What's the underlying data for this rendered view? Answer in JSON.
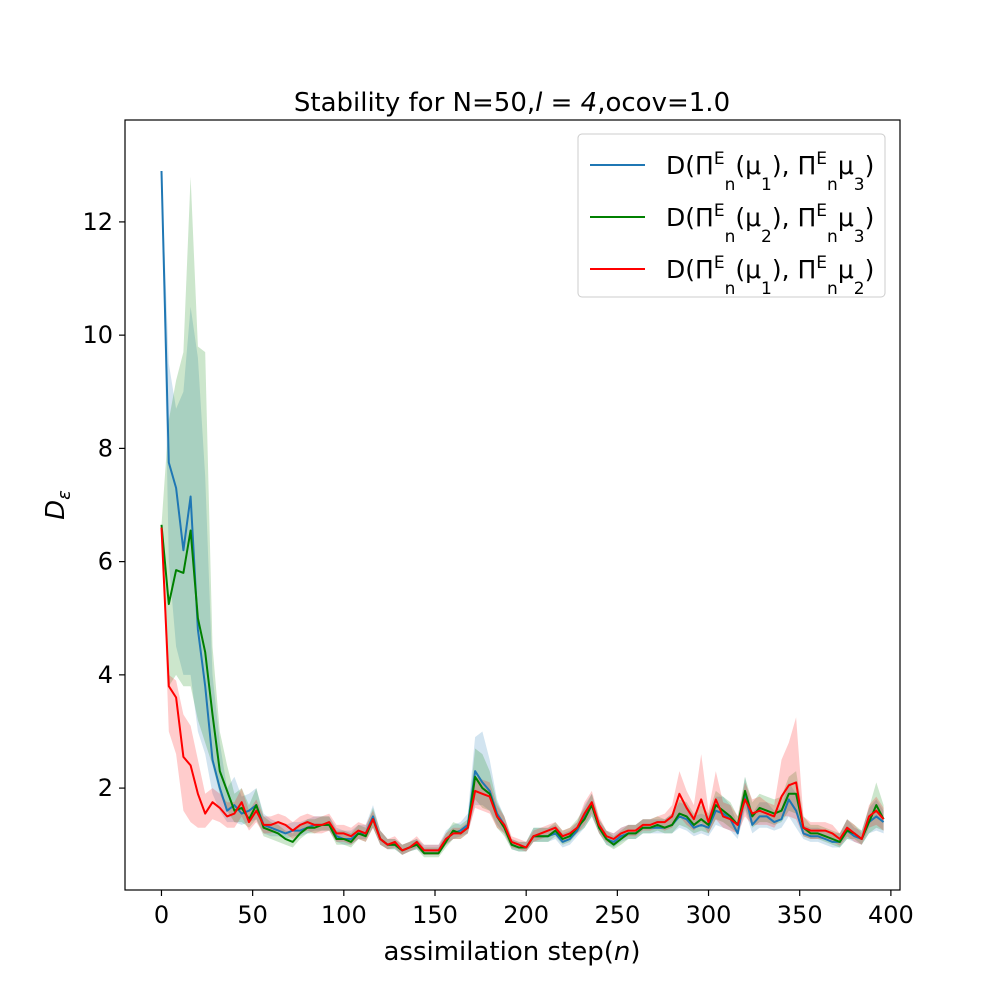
{
  "chart_data": {
    "type": "line",
    "title": "Stability for N=50,",
    "title_math": "l = 4",
    "title_suffix": ",ocov=1.0",
    "xlabel": "assimilation step(",
    "xlabel_math": "n",
    "xlabel_suffix": ")",
    "ylabel": "D",
    "ylabel_sub": "ε",
    "xlim": [
      -20,
      405
    ],
    "ylim": [
      0.2,
      13.8
    ],
    "xticks": [
      0,
      50,
      100,
      150,
      200,
      250,
      300,
      350,
      400
    ],
    "yticks": [
      2,
      4,
      6,
      8,
      10,
      12
    ],
    "x": [
      0,
      4,
      8,
      12,
      16,
      20,
      24,
      28,
      32,
      36,
      40,
      44,
      48,
      52,
      56,
      60,
      64,
      68,
      72,
      76,
      80,
      84,
      88,
      92,
      96,
      100,
      104,
      108,
      112,
      116,
      120,
      124,
      128,
      132,
      136,
      140,
      144,
      148,
      152,
      156,
      160,
      164,
      168,
      172,
      176,
      180,
      184,
      188,
      192,
      196,
      200,
      204,
      208,
      212,
      216,
      220,
      224,
      228,
      232,
      236,
      240,
      244,
      248,
      252,
      256,
      260,
      264,
      268,
      272,
      276,
      280,
      284,
      288,
      292,
      296,
      300,
      304,
      308,
      312,
      316,
      320,
      324,
      328,
      332,
      336,
      340,
      344,
      348,
      352,
      356,
      360,
      364,
      368,
      372,
      376,
      380,
      384,
      388,
      392,
      396
    ],
    "legend_position": "upper right",
    "series": [
      {
        "name": "D(Π^E_n(μ_1), Π^E_nμ_3)",
        "color": "#1f77b4",
        "values": [
          12.9,
          7.75,
          7.3,
          6.2,
          7.15,
          4.8,
          3.8,
          2.5,
          2.0,
          1.6,
          1.7,
          1.55,
          1.6,
          1.7,
          1.35,
          1.3,
          1.25,
          1.2,
          1.25,
          1.25,
          1.3,
          1.35,
          1.35,
          1.35,
          1.15,
          1.1,
          1.1,
          1.2,
          1.2,
          1.5,
          1.1,
          1.0,
          1.0,
          0.9,
          0.95,
          1.0,
          0.9,
          0.9,
          0.9,
          1.1,
          1.2,
          1.25,
          1.35,
          2.3,
          2.1,
          1.95,
          1.55,
          1.35,
          1.0,
          0.95,
          0.95,
          1.15,
          1.15,
          1.15,
          1.2,
          1.05,
          1.1,
          1.25,
          1.5,
          1.7,
          1.3,
          1.1,
          1.05,
          1.15,
          1.2,
          1.2,
          1.3,
          1.3,
          1.3,
          1.3,
          1.35,
          1.5,
          1.45,
          1.3,
          1.35,
          1.3,
          1.6,
          1.55,
          1.45,
          1.2,
          1.9,
          1.35,
          1.5,
          1.5,
          1.4,
          1.45,
          1.8,
          1.6,
          1.2,
          1.15,
          1.15,
          1.1,
          1.05,
          1.05,
          1.25,
          1.15,
          1.1,
          1.4,
          1.5,
          1.4
        ],
        "band_low": [
          12.9,
          6.0,
          4.5,
          4.0,
          4.0,
          3.0,
          2.6,
          1.9,
          1.6,
          1.4,
          1.4,
          1.35,
          1.4,
          1.45,
          1.2,
          1.15,
          1.15,
          1.1,
          1.15,
          1.15,
          1.2,
          1.25,
          1.25,
          1.25,
          1.05,
          1.0,
          1.0,
          1.1,
          1.1,
          1.3,
          1.0,
          0.92,
          0.92,
          0.82,
          0.88,
          0.92,
          0.82,
          0.82,
          0.82,
          1.0,
          1.1,
          1.15,
          1.2,
          1.7,
          1.7,
          1.6,
          1.35,
          1.2,
          0.92,
          0.88,
          0.88,
          1.05,
          1.05,
          1.05,
          1.1,
          0.95,
          1.0,
          1.15,
          1.3,
          1.5,
          1.2,
          1.0,
          0.95,
          1.05,
          1.1,
          1.1,
          1.2,
          1.2,
          1.2,
          1.2,
          1.2,
          1.3,
          1.25,
          1.15,
          1.2,
          1.15,
          1.35,
          1.3,
          1.25,
          1.1,
          1.6,
          1.2,
          1.3,
          1.3,
          1.25,
          1.3,
          1.5,
          1.3,
          1.1,
          1.05,
          1.05,
          1.0,
          0.95,
          0.95,
          1.1,
          1.05,
          1.0,
          1.2,
          1.25,
          1.2
        ],
        "band_high": [
          12.9,
          9.5,
          8.7,
          9.0,
          10.5,
          9.6,
          7.5,
          4.0,
          2.8,
          2.0,
          2.2,
          1.85,
          1.9,
          2.0,
          1.55,
          1.45,
          1.4,
          1.35,
          1.4,
          1.4,
          1.45,
          1.5,
          1.5,
          1.5,
          1.3,
          1.25,
          1.25,
          1.35,
          1.35,
          1.7,
          1.25,
          1.1,
          1.1,
          1.0,
          1.05,
          1.1,
          1.0,
          1.0,
          1.0,
          1.25,
          1.35,
          1.4,
          1.55,
          2.9,
          3.0,
          2.5,
          1.8,
          1.5,
          1.1,
          1.05,
          1.05,
          1.3,
          1.3,
          1.3,
          1.35,
          1.2,
          1.25,
          1.4,
          1.7,
          1.9,
          1.45,
          1.25,
          1.2,
          1.3,
          1.35,
          1.35,
          1.45,
          1.45,
          1.45,
          1.45,
          1.55,
          1.75,
          1.7,
          1.5,
          1.55,
          1.5,
          1.85,
          1.85,
          1.7,
          1.35,
          2.2,
          1.55,
          1.75,
          1.75,
          1.6,
          1.65,
          2.1,
          1.9,
          1.35,
          1.3,
          1.3,
          1.25,
          1.2,
          1.2,
          1.45,
          1.3,
          1.25,
          1.65,
          1.8,
          1.6
        ]
      },
      {
        "name": "D(Π^E_n(μ_2), Π^E_nμ_3)",
        "color": "#008000",
        "values": [
          6.65,
          5.25,
          5.85,
          5.8,
          6.55,
          5.0,
          4.4,
          3.3,
          2.3,
          1.95,
          1.6,
          1.65,
          1.45,
          1.7,
          1.3,
          1.25,
          1.2,
          1.1,
          1.05,
          1.2,
          1.3,
          1.3,
          1.35,
          1.35,
          1.1,
          1.1,
          1.05,
          1.2,
          1.15,
          1.45,
          1.1,
          1.0,
          1.0,
          0.9,
          0.95,
          1.0,
          0.85,
          0.85,
          0.85,
          1.05,
          1.25,
          1.2,
          1.3,
          2.2,
          2.0,
          1.9,
          1.5,
          1.3,
          1.0,
          0.95,
          0.95,
          1.15,
          1.15,
          1.15,
          1.25,
          1.1,
          1.15,
          1.3,
          1.45,
          1.7,
          1.3,
          1.1,
          1.0,
          1.1,
          1.2,
          1.2,
          1.3,
          1.3,
          1.35,
          1.3,
          1.35,
          1.55,
          1.5,
          1.35,
          1.45,
          1.35,
          1.7,
          1.6,
          1.5,
          1.35,
          1.95,
          1.5,
          1.65,
          1.6,
          1.55,
          1.6,
          1.9,
          1.9,
          1.3,
          1.2,
          1.2,
          1.15,
          1.1,
          1.05,
          1.25,
          1.2,
          1.1,
          1.4,
          1.7,
          1.45
        ],
        "band_low": [
          6.65,
          3.8,
          4.0,
          3.8,
          3.8,
          3.2,
          2.8,
          2.4,
          1.9,
          1.6,
          1.4,
          1.4,
          1.3,
          1.45,
          1.15,
          1.1,
          1.05,
          1.0,
          0.95,
          1.1,
          1.2,
          1.2,
          1.25,
          1.25,
          1.0,
          1.0,
          0.95,
          1.1,
          1.05,
          1.3,
          1.0,
          0.92,
          0.92,
          0.82,
          0.88,
          0.92,
          0.78,
          0.78,
          0.78,
          0.95,
          1.1,
          1.1,
          1.2,
          1.8,
          1.65,
          1.6,
          1.3,
          1.15,
          0.92,
          0.88,
          0.88,
          1.05,
          1.05,
          1.05,
          1.15,
          1.0,
          1.05,
          1.2,
          1.3,
          1.5,
          1.2,
          1.0,
          0.92,
          1.0,
          1.1,
          1.1,
          1.2,
          1.2,
          1.25,
          1.2,
          1.2,
          1.35,
          1.3,
          1.2,
          1.25,
          1.2,
          1.45,
          1.4,
          1.3,
          1.2,
          1.65,
          1.3,
          1.4,
          1.4,
          1.35,
          1.4,
          1.6,
          1.55,
          1.15,
          1.1,
          1.1,
          1.05,
          1.0,
          0.95,
          1.1,
          1.1,
          1.0,
          1.2,
          1.3,
          1.25
        ],
        "band_high": [
          6.65,
          8.5,
          9.2,
          9.7,
          12.8,
          9.8,
          9.7,
          4.5,
          3.0,
          2.4,
          1.9,
          2.0,
          1.7,
          2.0,
          1.5,
          1.4,
          1.35,
          1.25,
          1.2,
          1.35,
          1.45,
          1.45,
          1.5,
          1.5,
          1.25,
          1.25,
          1.2,
          1.35,
          1.3,
          1.65,
          1.25,
          1.1,
          1.1,
          1.0,
          1.05,
          1.1,
          0.95,
          0.95,
          0.95,
          1.2,
          1.4,
          1.35,
          1.45,
          2.7,
          2.6,
          2.3,
          1.75,
          1.5,
          1.1,
          1.05,
          1.05,
          1.3,
          1.3,
          1.3,
          1.4,
          1.25,
          1.3,
          1.45,
          1.65,
          1.9,
          1.45,
          1.25,
          1.15,
          1.25,
          1.35,
          1.35,
          1.45,
          1.45,
          1.5,
          1.45,
          1.55,
          1.8,
          1.75,
          1.55,
          1.7,
          1.55,
          1.95,
          1.85,
          1.75,
          1.5,
          2.2,
          1.75,
          1.9,
          1.85,
          1.8,
          1.85,
          2.2,
          2.3,
          1.5,
          1.35,
          1.35,
          1.3,
          1.25,
          1.2,
          1.45,
          1.35,
          1.25,
          1.65,
          2.1,
          1.7
        ]
      },
      {
        "name": "D(Π^E_n(μ_1), Π^E_nμ_2)",
        "color": "#ff0000",
        "values": [
          6.6,
          3.8,
          3.6,
          2.55,
          2.4,
          1.9,
          1.55,
          1.75,
          1.65,
          1.5,
          1.55,
          1.75,
          1.4,
          1.6,
          1.35,
          1.35,
          1.4,
          1.35,
          1.25,
          1.35,
          1.4,
          1.35,
          1.35,
          1.4,
          1.2,
          1.2,
          1.15,
          1.25,
          1.2,
          1.45,
          1.1,
          1.0,
          1.05,
          0.9,
          0.95,
          1.05,
          0.9,
          0.9,
          0.9,
          1.1,
          1.2,
          1.2,
          1.3,
          1.95,
          1.9,
          1.85,
          1.5,
          1.35,
          1.05,
          1.0,
          0.95,
          1.15,
          1.2,
          1.25,
          1.3,
          1.15,
          1.2,
          1.3,
          1.55,
          1.75,
          1.35,
          1.15,
          1.1,
          1.2,
          1.25,
          1.25,
          1.35,
          1.35,
          1.4,
          1.4,
          1.5,
          1.9,
          1.65,
          1.45,
          1.8,
          1.4,
          1.8,
          1.5,
          1.45,
          1.35,
          1.8,
          1.55,
          1.6,
          1.55,
          1.5,
          1.85,
          2.05,
          2.1,
          1.3,
          1.25,
          1.25,
          1.25,
          1.2,
          1.1,
          1.3,
          1.2,
          1.1,
          1.5,
          1.6,
          1.45
        ],
        "band_low": [
          6.6,
          3.0,
          2.6,
          1.6,
          1.4,
          1.3,
          1.3,
          1.45,
          1.4,
          1.3,
          1.3,
          1.5,
          1.25,
          1.4,
          1.2,
          1.2,
          1.25,
          1.2,
          1.1,
          1.2,
          1.25,
          1.2,
          1.2,
          1.25,
          1.05,
          1.05,
          1.0,
          1.1,
          1.05,
          1.3,
          1.0,
          0.92,
          0.95,
          0.82,
          0.88,
          0.95,
          0.82,
          0.82,
          0.82,
          1.0,
          1.1,
          1.1,
          1.2,
          1.65,
          1.6,
          1.55,
          1.3,
          1.2,
          0.95,
          0.92,
          0.88,
          1.05,
          1.1,
          1.15,
          1.2,
          1.05,
          1.1,
          1.2,
          1.35,
          1.55,
          1.2,
          1.05,
          1.0,
          1.1,
          1.15,
          1.15,
          1.25,
          1.25,
          1.3,
          1.25,
          1.3,
          1.5,
          1.35,
          1.25,
          1.4,
          1.2,
          1.45,
          1.3,
          1.25,
          1.2,
          1.5,
          1.35,
          1.35,
          1.35,
          1.3,
          1.5,
          1.5,
          1.45,
          1.15,
          1.1,
          1.1,
          1.1,
          1.05,
          0.98,
          1.15,
          1.05,
          1.0,
          1.3,
          1.35,
          1.25
        ],
        "band_high": [
          6.6,
          4.0,
          3.9,
          3.3,
          3.1,
          2.5,
          1.9,
          2.0,
          1.9,
          1.75,
          1.75,
          2.0,
          1.6,
          1.8,
          1.5,
          1.5,
          1.55,
          1.5,
          1.4,
          1.5,
          1.55,
          1.5,
          1.5,
          1.55,
          1.35,
          1.35,
          1.3,
          1.4,
          1.35,
          1.6,
          1.25,
          1.1,
          1.15,
          1.0,
          1.05,
          1.15,
          1.0,
          1.0,
          1.0,
          1.2,
          1.3,
          1.3,
          1.4,
          2.2,
          2.15,
          2.1,
          1.7,
          1.5,
          1.15,
          1.1,
          1.05,
          1.25,
          1.3,
          1.35,
          1.4,
          1.25,
          1.3,
          1.4,
          1.75,
          1.95,
          1.5,
          1.25,
          1.2,
          1.3,
          1.35,
          1.35,
          1.45,
          1.45,
          1.5,
          1.55,
          1.7,
          2.3,
          1.95,
          1.7,
          2.6,
          1.6,
          2.3,
          1.75,
          1.7,
          1.5,
          2.1,
          1.8,
          1.85,
          1.75,
          1.7,
          2.5,
          2.8,
          3.25,
          1.5,
          1.4,
          1.4,
          1.4,
          1.35,
          1.2,
          1.45,
          1.35,
          1.2,
          1.7,
          1.85,
          1.65
        ]
      }
    ]
  }
}
